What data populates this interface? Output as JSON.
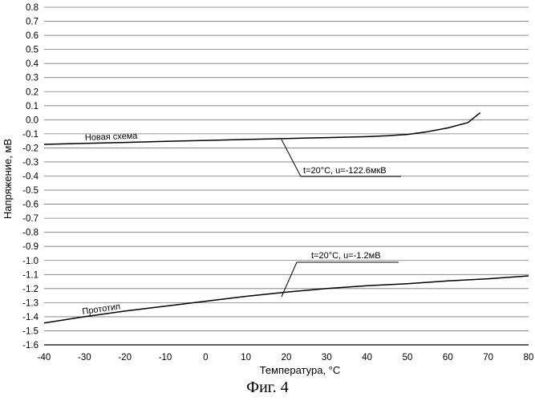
{
  "caption": "Фиг. 4",
  "chart_data": {
    "type": "line",
    "xlabel": "Температура, °C",
    "ylabel": "Напряжение, мВ",
    "xlim": [
      -40,
      80
    ],
    "ylim": [
      -1.6,
      0.8
    ],
    "x_ticks": [
      "-40",
      "-30",
      "-20",
      "-10",
      "0",
      "10",
      "20",
      "30",
      "40",
      "50",
      "60",
      "70",
      "80"
    ],
    "y_ticks": [
      "0.8",
      "0.7",
      "0.6",
      "0.5",
      "0.4",
      "0.3",
      "0.2",
      "0.1",
      "0.0",
      "-0.1",
      "-0.2",
      "-0.3",
      "-0.4",
      "-0.5",
      "-0.6",
      "-0.7",
      "-0.8",
      "-0.9",
      "-1.0",
      "-1.1",
      "-1.2",
      "-1.3",
      "-1.4",
      "-1.5",
      "-1.6"
    ],
    "grid": "horizontal",
    "series": [
      {
        "name": "Новая схема",
        "x": [
          -40,
          -30,
          -20,
          -10,
          0,
          10,
          20,
          30,
          40,
          45,
          50,
          55,
          60,
          65,
          68
        ],
        "y": [
          -0.175,
          -0.168,
          -0.161,
          -0.154,
          -0.147,
          -0.14,
          -0.133,
          -0.127,
          -0.12,
          -0.114,
          -0.104,
          -0.085,
          -0.058,
          -0.02,
          0.05
        ]
      },
      {
        "name": "Прототип",
        "x": [
          -40,
          -30,
          -20,
          -10,
          0,
          10,
          20,
          30,
          40,
          50,
          60,
          70,
          80
        ],
        "y": [
          -1.445,
          -1.4,
          -1.36,
          -1.325,
          -1.29,
          -1.255,
          -1.225,
          -1.2,
          -1.18,
          -1.165,
          -1.145,
          -1.13,
          -1.11
        ]
      }
    ],
    "annotations": [
      {
        "text": "t=20°C, u=-122.6мкВ",
        "x": 20,
        "y": -0.13
      },
      {
        "text": "t=20°C, u=-1.2мВ",
        "x": 20,
        "y": -1.25
      }
    ]
  }
}
